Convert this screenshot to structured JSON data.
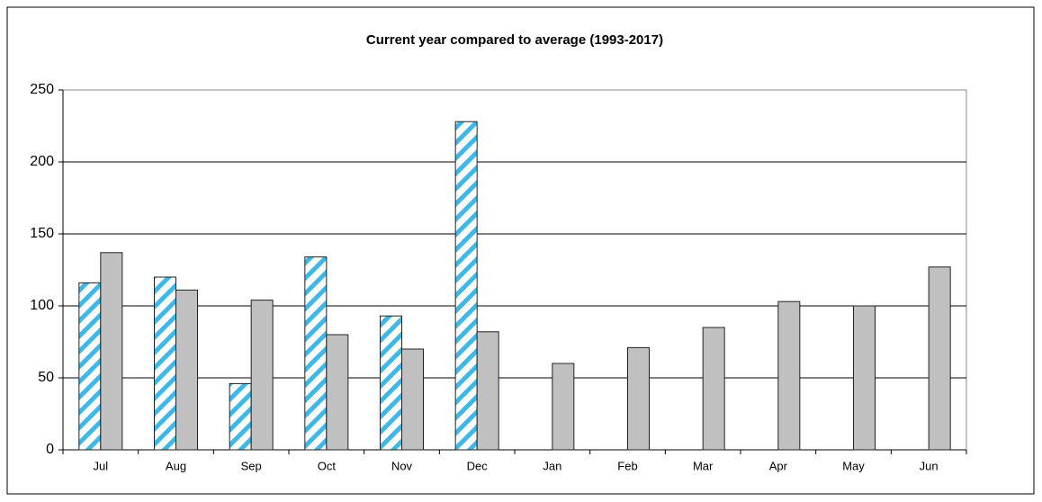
{
  "chart_data": {
    "type": "bar",
    "title": "Current year compared to average (1993-2017)",
    "categories": [
      "Jul",
      "Aug",
      "Sep",
      "Oct",
      "Nov",
      "Dec",
      "Jan",
      "Feb",
      "Mar",
      "Apr",
      "May",
      "Jun"
    ],
    "series": [
      {
        "color": "#3fb8e8",
        "hatch": true,
        "values": [
          116,
          120,
          46,
          134,
          93,
          228,
          null,
          null,
          null,
          null,
          null,
          null
        ]
      },
      {
        "color": "#c0c0c0",
        "hatch": false,
        "values": [
          137,
          111,
          104,
          80,
          70,
          82,
          60,
          71,
          85,
          103,
          100,
          127
        ]
      }
    ],
    "ylim": [
      0,
      250
    ],
    "yticks": [
      0,
      50,
      100,
      150,
      200,
      250
    ],
    "grid": true
  }
}
